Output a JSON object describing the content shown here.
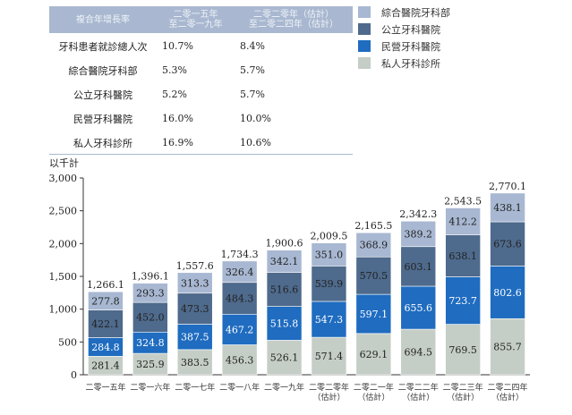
{
  "table": {
    "headers": [
      "複合年增長率",
      "二零一五年\n至二零一九年",
      "二零二零年（估計）\n至二零二四年（估計）"
    ],
    "rows": [
      {
        "label": "牙科患者就診總人次",
        "v1": "10.7%",
        "v2": "8.4%"
      },
      {
        "label": "綜合醫院牙科部",
        "v1": "5.3%",
        "v2": "5.7%"
      },
      {
        "label": "公立牙科醫院",
        "v1": "5.2%",
        "v2": "5.7%"
      },
      {
        "label": "民營牙科醫院",
        "v1": "16.0%",
        "v2": "10.0%"
      },
      {
        "label": "私人牙科診所",
        "v1": "16.9%",
        "v2": "10.6%"
      }
    ]
  },
  "chart_data": {
    "type": "bar",
    "stacked": true,
    "ylabel": "以千計",
    "ylim": [
      0,
      3000
    ],
    "yticks": [
      "0",
      "500",
      "1,000",
      "1,500",
      "2,000",
      "2,500",
      "3,000"
    ],
    "legend_placement": "top-right",
    "categories": [
      [
        "二零一五年"
      ],
      [
        "二零一六年"
      ],
      [
        "二零一七年"
      ],
      [
        "二零一八年"
      ],
      [
        "二零一九年"
      ],
      [
        "二零二零年",
        "（估計）"
      ],
      [
        "二零二一年",
        "（估計）"
      ],
      [
        "二零二二年",
        "（估計）"
      ],
      [
        "二零二三年",
        "（估計）"
      ],
      [
        "二零二四年",
        "（估計）"
      ]
    ],
    "series": [
      {
        "name": "私人牙科診所",
        "color": "#c5cec6",
        "values": [
          281.4,
          325.9,
          383.5,
          456.3,
          526.1,
          571.4,
          629.1,
          694.5,
          769.5,
          855.7
        ]
      },
      {
        "name": "民營牙科醫院",
        "color": "#1f6cc0",
        "values": [
          284.8,
          324.8,
          387.5,
          467.2,
          515.8,
          547.3,
          597.1,
          655.6,
          723.7,
          802.6
        ]
      },
      {
        "name": "公立牙科醫院",
        "color": "#4e6a8c",
        "values": [
          422.1,
          452.0,
          473.3,
          484.3,
          516.6,
          539.9,
          570.5,
          603.1,
          638.1,
          673.6
        ]
      },
      {
        "name": "綜合醫院牙科部",
        "color": "#a8b8d2",
        "values": [
          277.8,
          293.3,
          313.3,
          326.4,
          342.1,
          351.0,
          368.9,
          389.2,
          412.2,
          438.1
        ]
      }
    ],
    "totals": [
      "1,266.1",
      "1,396.1",
      "1,557.6",
      "1,734.3",
      "1,900.6",
      "2,009.5",
      "2,165.5",
      "2,342.3",
      "2,543.5",
      "2,770.1"
    ]
  }
}
